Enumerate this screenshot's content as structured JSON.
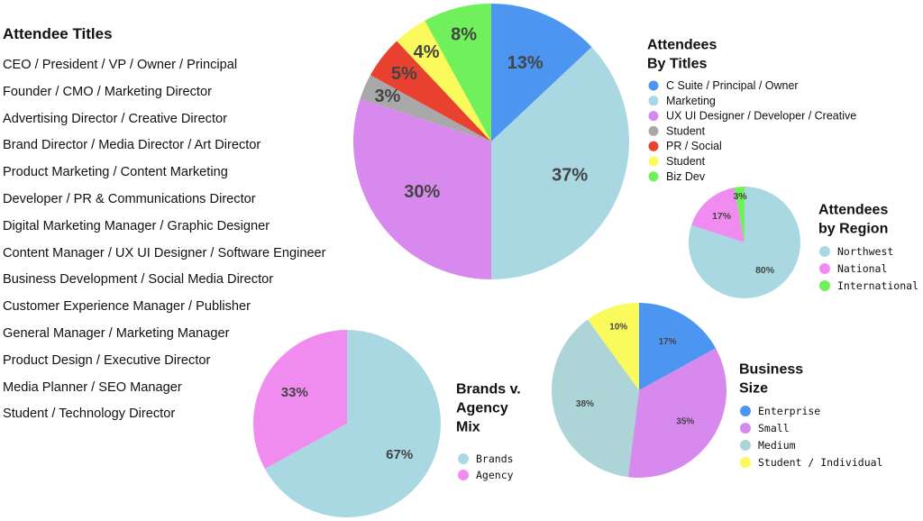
{
  "titles_heading": "Attendee Titles",
  "titles": [
    "CEO / President / VP / Owner / Principal",
    "Founder / CMO / Marketing Director",
    "Advertising Director / Creative Director",
    "Brand Director / Media Director / Art Director",
    "Product Marketing / Content Marketing",
    "Developer / PR & Communications Director",
    "Digital Marketing Manager / Graphic Designer",
    "Content Manager / UX UI Designer / Software Engineer",
    "Business Development / Social Media Director",
    "Customer Experience Manager / Publisher",
    "General Manager / Marketing Manager",
    "Product Design /  Executive Director",
    "Media Planner / SEO Manager",
    "Student / Technology Director"
  ],
  "chart_data": [
    {
      "id": "titles",
      "type": "pie",
      "title": [
        "Attendees",
        "By Titles"
      ],
      "legend_style": "sans",
      "categories": [
        "C Suite / Principal / Owner",
        "Marketing",
        "UX UI Designer / Developer / Creative",
        "Student",
        "PR / Social",
        "Student",
        "Biz Dev"
      ],
      "values": [
        13,
        37,
        30,
        3,
        5,
        4,
        8
      ],
      "labels": [
        "13%",
        "37%",
        "30%",
        "3%",
        "5%",
        "4%",
        "8%"
      ],
      "colors": [
        "#4c96f2",
        "#a9d8e2",
        "#d889ee",
        "#a8a8a8",
        "#e8412f",
        "#fafa5c",
        "#70f05a"
      ]
    },
    {
      "id": "region",
      "type": "pie",
      "title": [
        "Attendees",
        "by Region"
      ],
      "legend_style": "mono",
      "categories": [
        "Northwest",
        "National",
        "International"
      ],
      "values": [
        80,
        17,
        3
      ],
      "labels": [
        "80%",
        "17%",
        "3%"
      ],
      "colors": [
        "#a9d8e2",
        "#f08cf0",
        "#70f05a"
      ]
    },
    {
      "id": "brands",
      "type": "pie",
      "title": [
        "Brands v.",
        "Agency",
        "Mix"
      ],
      "legend_style": "mono",
      "categories": [
        "Brands",
        "Agency"
      ],
      "values": [
        67,
        33
      ],
      "labels": [
        "67%",
        "33%"
      ],
      "colors": [
        "#a9d8e2",
        "#f08cf0"
      ]
    },
    {
      "id": "business",
      "type": "pie",
      "title": [
        "Business",
        "Size"
      ],
      "legend_style": "mono",
      "categories": [
        "Enterprise",
        "Small",
        "Medium",
        "Student / Individual"
      ],
      "values": [
        17,
        35,
        38,
        10
      ],
      "labels": [
        "17%",
        "35%",
        "38%",
        "10%"
      ],
      "colors": [
        "#4c96f2",
        "#d889ee",
        "#add4d7",
        "#fafa5c"
      ]
    }
  ]
}
